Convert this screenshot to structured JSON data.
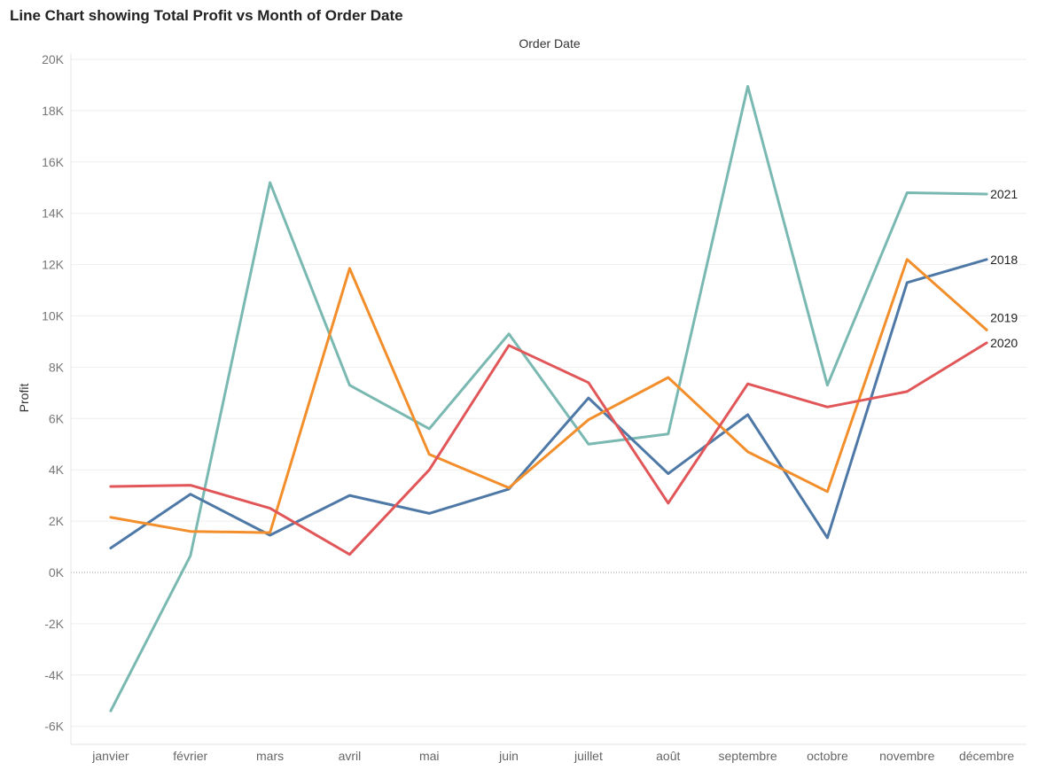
{
  "chart_data": {
    "type": "line",
    "title": "Line Chart showing Total Profit vs Month of Order Date",
    "xlabel": "Order Date",
    "ylabel": "Profit",
    "categories": [
      "janvier",
      "février",
      "mars",
      "avril",
      "mai",
      "juin",
      "juillet",
      "août",
      "septembre",
      "octobre",
      "novembre",
      "décembre"
    ],
    "y_ticks": [
      -6000,
      -4000,
      -2000,
      0,
      2000,
      4000,
      6000,
      8000,
      10000,
      12000,
      14000,
      16000,
      18000,
      20000
    ],
    "y_tick_labels": [
      "-6K",
      "-4K",
      "-2K",
      "0K",
      "2K",
      "4K",
      "6K",
      "8K",
      "10K",
      "12K",
      "14K",
      "16K",
      "18K",
      "20K"
    ],
    "ylim": [
      -6500,
      20200
    ],
    "grid": "horizontal",
    "legend": "end-of-line labels",
    "series": [
      {
        "name": "2021",
        "color": "#7ab8b2",
        "values": [
          -5400,
          650,
          15200,
          7300,
          5600,
          9300,
          5000,
          5400,
          18950,
          7300,
          14800,
          14750
        ]
      },
      {
        "name": "2018",
        "color": "#4e79a7",
        "values": [
          950,
          3050,
          1450,
          3000,
          2300,
          3250,
          6800,
          3850,
          6150,
          1350,
          11300,
          12200
        ]
      },
      {
        "name": "2019",
        "color": "#f28e2b",
        "values": [
          2150,
          1600,
          1550,
          11850,
          4600,
          3300,
          5950,
          7600,
          4700,
          3150,
          12200,
          9450
        ]
      },
      {
        "name": "2020",
        "color": "#e15759",
        "values": [
          3350,
          3400,
          2500,
          700,
          4000,
          8850,
          7400,
          2700,
          7350,
          6450,
          7050,
          8950
        ]
      }
    ]
  }
}
